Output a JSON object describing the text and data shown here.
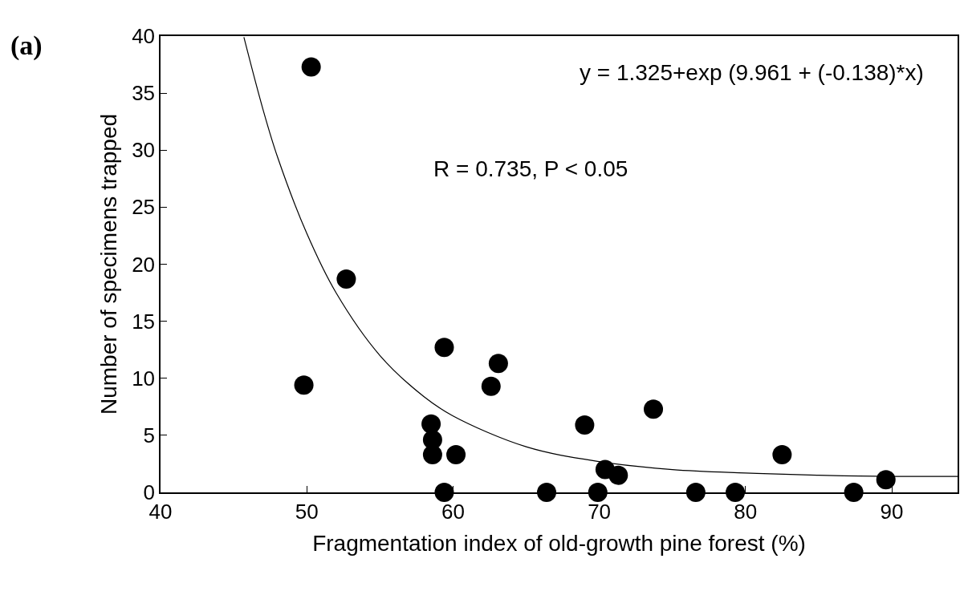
{
  "chart_data": {
    "type": "scatter",
    "title": "(a)",
    "xlabel": "Fragmentation index of old-growth pine forest (%)",
    "ylabel": "Number of specimens trapped",
    "xlim": [
      40,
      94.5
    ],
    "xticks": [
      40,
      50,
      60,
      70,
      80,
      90
    ],
    "ylim": [
      0,
      40
    ],
    "yticks": [
      0,
      5,
      10,
      15,
      20,
      25,
      30,
      35,
      40
    ],
    "annotations": [
      "y = 1.325+exp (9.961 + (-0.138)*x)",
      "R = 0.735, P < 0.05"
    ],
    "series": [
      {
        "marker": "circle",
        "color": "#000000",
        "x": [
          50.3,
          52.7,
          49.8,
          59.4,
          63.1,
          62.6,
          58.5,
          58.6,
          58.6,
          60.2,
          59.4,
          66.4,
          69.0,
          70.4,
          71.3,
          69.9,
          73.7,
          76.6,
          79.3,
          82.5,
          87.4,
          89.6
        ],
        "values": [
          37.3,
          18.7,
          9.4,
          12.7,
          11.3,
          9.3,
          6.0,
          4.6,
          3.3,
          3.3,
          0,
          0,
          5.9,
          2.0,
          1.5,
          0,
          7.3,
          0,
          0,
          3.3,
          0,
          1.1
        ]
      },
      {
        "type": "line",
        "color": "#000000",
        "line_style": "solid",
        "x": [
          45.7,
          47,
          48,
          50,
          52,
          55,
          58,
          60,
          65,
          70,
          75,
          80,
          85,
          90,
          94.5
        ],
        "values": [
          39.9,
          33.6,
          29.4,
          22.7,
          17.5,
          12.0,
          8.4,
          6.7,
          4.0,
          2.7,
          2.0,
          1.7,
          1.5,
          1.4,
          1.4
        ]
      }
    ]
  }
}
